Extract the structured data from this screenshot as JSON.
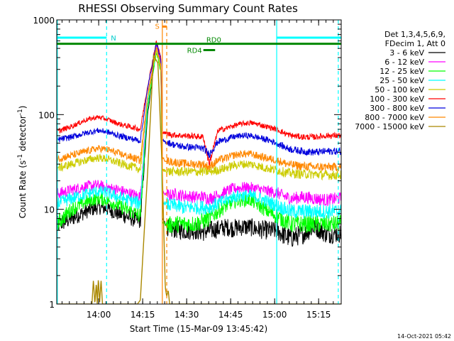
{
  "chart_data": {
    "type": "line",
    "title": "RHESSI Observing Summary Count Rates",
    "xlabel": "Start Time (15-Mar-09 13:45:42)",
    "ylabel_prefix": "Count Rate (s",
    "ylabel_sup1": "-1",
    "ylabel_mid": " detector",
    "ylabel_sup2": "-1",
    "ylabel_suffix": ")",
    "x_unit": "minutes after 13:45:42",
    "xlim": [
      0,
      97
    ],
    "ylim": [
      1,
      1000
    ],
    "y_scale": "log",
    "x_ticks": [
      {
        "label": "14:00",
        "value": 14.3
      },
      {
        "label": "14:15",
        "value": 29.3
      },
      {
        "label": "14:30",
        "value": 44.3
      },
      {
        "label": "14:45",
        "value": 59.3
      },
      {
        "label": "15:00",
        "value": 74.3
      },
      {
        "label": "15:15",
        "value": 89.3
      }
    ],
    "y_ticks": [
      {
        "label": "1000",
        "value": 1000
      },
      {
        "label": "100",
        "value": 100
      },
      {
        "label": "10",
        "value": 10
      },
      {
        "label": "1",
        "value": 1
      }
    ],
    "legend_header": [
      "Det 1,3,4,5,6,9,",
      "FDecim 1, Att 0"
    ],
    "legend_position": "right",
    "series": [
      {
        "name": "3 - 6 keV",
        "color": "#000000",
        "x": [
          0,
          5,
          10,
          14,
          17,
          21,
          28.5,
          31,
          34,
          35.5,
          36,
          38.5,
          40,
          43,
          47,
          50,
          52,
          55,
          58,
          60,
          63,
          66,
          68,
          72,
          75,
          78,
          80,
          84,
          88,
          92,
          96
        ],
        "y": [
          6.8,
          8.0,
          9.5,
          10.5,
          10.2,
          9.0,
          7.5,
          100,
          570,
          300,
          8.0,
          6.0,
          6.2,
          6.0,
          6.0,
          5.8,
          6.0,
          6.2,
          6.5,
          6.3,
          6.5,
          6.5,
          6.2,
          6.0,
          6.0,
          5.2,
          5.0,
          5.5,
          6.5,
          5.5,
          5.6
        ]
      },
      {
        "name": "6 - 12 keV",
        "color": "#ff00ff",
        "x": [
          0,
          5,
          10,
          14,
          17,
          21,
          28.5,
          31,
          34,
          35.5,
          36,
          38.5,
          40,
          43,
          47,
          50,
          52,
          55,
          58,
          60,
          63,
          66,
          68,
          72,
          75,
          78,
          80,
          84,
          88,
          92,
          96
        ],
        "y": [
          14.5,
          16.0,
          17.5,
          18.0,
          17.0,
          16.0,
          13.5,
          150,
          550,
          350,
          15.0,
          14.0,
          14.5,
          14.0,
          13.5,
          13.5,
          13.0,
          14.0,
          15.5,
          16.5,
          17.0,
          17.0,
          16.5,
          15.5,
          15.0,
          13.5,
          13.0,
          13.5,
          13.0,
          12.5,
          13.0
        ]
      },
      {
        "name": "12 - 25 keV",
        "color": "#00ff00",
        "x": [
          0,
          5,
          10,
          14,
          17,
          21,
          28.5,
          31,
          34,
          35.5,
          36,
          38.5,
          40,
          43,
          47,
          50,
          52,
          55,
          58,
          60,
          63,
          66,
          68,
          72,
          75,
          78,
          80,
          84,
          88,
          92,
          96
        ],
        "y": [
          7.0,
          10.0,
          12.0,
          13.0,
          12.5,
          11.0,
          8.5,
          120,
          460,
          280,
          7.2,
          6.8,
          7.0,
          7.0,
          7.0,
          7.5,
          8.0,
          9.5,
          11.0,
          12.0,
          12.5,
          12.5,
          11.5,
          9.5,
          8.5,
          7.5,
          7.0,
          7.0,
          7.0,
          7.0,
          7.0
        ]
      },
      {
        "name": "25 - 50 keV",
        "color": "#00ffff",
        "x": [
          0,
          5,
          10,
          14,
          17,
          21,
          28.5,
          31,
          34,
          35.5,
          36,
          38.5,
          40,
          43,
          47,
          50,
          52,
          55,
          58,
          60,
          63,
          66,
          68,
          72,
          75,
          78,
          80,
          84,
          88,
          92,
          96
        ],
        "y": [
          11.5,
          13.0,
          14.5,
          15.5,
          15.0,
          13.5,
          11.5,
          140,
          500,
          320,
          12.0,
          11.0,
          11.0,
          10.5,
          10.5,
          10.5,
          10.5,
          11.5,
          12.5,
          13.5,
          14.0,
          14.0,
          13.5,
          12.0,
          11.0,
          10.0,
          9.5,
          9.5,
          9.5,
          9.5,
          9.5
        ]
      },
      {
        "name": "50 - 100 keV",
        "color": "#cccc00",
        "x": [
          0,
          5,
          10,
          14,
          17,
          21,
          28.5,
          31,
          34,
          35.5,
          36,
          38.5,
          40,
          43,
          47,
          50,
          52,
          55,
          58,
          60,
          63,
          66,
          68,
          72,
          75,
          78,
          80,
          84,
          88,
          92,
          96
        ],
        "y": [
          27.0,
          30.0,
          33.0,
          35.0,
          34.0,
          31.0,
          26.5,
          150,
          480,
          300,
          26.0,
          25.0,
          25.0,
          25.0,
          25.0,
          25.0,
          25.0,
          26.0,
          27.5,
          29.0,
          30.0,
          30.0,
          29.0,
          27.0,
          26.0,
          24.5,
          24.0,
          23.5,
          23.5,
          23.0,
          23.0
        ]
      },
      {
        "name": "100 - 300 keV",
        "color": "#ff0000",
        "x": [
          0,
          5,
          10,
          14,
          17,
          21,
          28.5,
          31,
          34,
          35.5,
          36,
          38.5,
          40,
          43,
          47,
          50,
          52,
          55,
          58,
          60,
          63,
          66,
          68,
          72,
          75,
          78,
          80,
          84,
          88,
          92,
          96
        ],
        "y": [
          66.0,
          75.0,
          88.0,
          94.0,
          90.0,
          80.0,
          70.0,
          200,
          600,
          400,
          65.0,
          62.0,
          61.0,
          60.0,
          59.0,
          58.0,
          30.0,
          68.0,
          72.0,
          76.0,
          80.0,
          82.0,
          80.0,
          74.0,
          70.0,
          63.0,
          60.0,
          58.0,
          58.0,
          60.0,
          60.0
        ]
      },
      {
        "name": "300 - 800 keV",
        "color": "#0000dd",
        "x": [
          0,
          5,
          10,
          14,
          17,
          21,
          28.5,
          31,
          34,
          35.5,
          36,
          38.5,
          40,
          43,
          47,
          50,
          52,
          55,
          58,
          60,
          63,
          66,
          68,
          72,
          75,
          78,
          80,
          84,
          88,
          92,
          96
        ],
        "y": [
          54.0,
          58.0,
          64.0,
          68.0,
          66.0,
          60.0,
          53.0,
          190,
          580,
          380,
          53.0,
          50.0,
          48.0,
          46.0,
          45.0,
          44.0,
          38.0,
          52.0,
          55.0,
          58.0,
          60.0,
          60.0,
          58.0,
          54.0,
          50.0,
          45.0,
          43.0,
          41.0,
          40.0,
          41.0,
          41.0
        ]
      },
      {
        "name": "800 - 7000 keV",
        "color": "#ff8800",
        "x": [
          0,
          5,
          10,
          14,
          17,
          21,
          28.5,
          31,
          34,
          35.5,
          36,
          38.5,
          40,
          43,
          47,
          50,
          52,
          55,
          58,
          60,
          63,
          66,
          68,
          72,
          75,
          78,
          80,
          84,
          88,
          92,
          96
        ],
        "y": [
          34.0,
          37.0,
          41.0,
          44.0,
          43.0,
          39.0,
          33.0,
          160,
          520,
          330,
          34.0,
          32.0,
          31.5,
          30.5,
          30.0,
          30.0,
          28.0,
          33.0,
          35.0,
          37.0,
          38.5,
          38.5,
          37.0,
          34.5,
          33.0,
          30.5,
          29.5,
          28.5,
          28.0,
          28.0,
          28.0
        ]
      },
      {
        "name": "7000 - 15000 keV",
        "color": "#aa8800",
        "x": [
          0,
          0.6,
          12,
          12.5,
          13,
          13.5,
          13.8,
          14.2,
          14.6,
          15.1,
          15.6,
          27.5,
          28.5,
          31,
          33,
          34.5,
          36,
          37,
          37.5,
          38,
          38.5,
          96
        ],
        "y": [
          1,
          1,
          1,
          1.8,
          1,
          1.7,
          1,
          1.9,
          1,
          1.8,
          1,
          1,
          1.1,
          25,
          420,
          350,
          25,
          1.5,
          1.2,
          1.4,
          1,
          1
        ]
      }
    ],
    "annotations": {
      "night_spans": [
        {
          "label": "N",
          "x_start": 0,
          "x_end": 17.0,
          "y": 650
        },
        {
          "label": "",
          "x_start": 75.0,
          "x_end": 97,
          "y": 650
        }
      ],
      "saa_span": {
        "label": "S",
        "x_start": 36.0,
        "x_end": 37.5,
        "y": 850
      },
      "vertical_lines": [
        {
          "x": 0.2,
          "color": "#00ffff",
          "style": "solid"
        },
        {
          "x": 17.0,
          "color": "#00ffff",
          "style": "dashed"
        },
        {
          "x": 75.0,
          "color": "#00ffff",
          "style": "solid"
        },
        {
          "x": 96.0,
          "color": "#00ffff",
          "style": "dashed"
        },
        {
          "x": 36.0,
          "color": "#ff8800",
          "style": "solid"
        },
        {
          "x": 37.5,
          "color": "#ff8800",
          "style": "dashed"
        }
      ],
      "decimation": [
        {
          "label": "RD0",
          "x_start": 0,
          "x_end": 97,
          "y": 560
        },
        {
          "label": "RD4",
          "x_start": 50.0,
          "x_end": 54.0,
          "y": 480
        }
      ]
    }
  },
  "footer": {
    "timestamp": "14-Oct-2021 05:42"
  }
}
